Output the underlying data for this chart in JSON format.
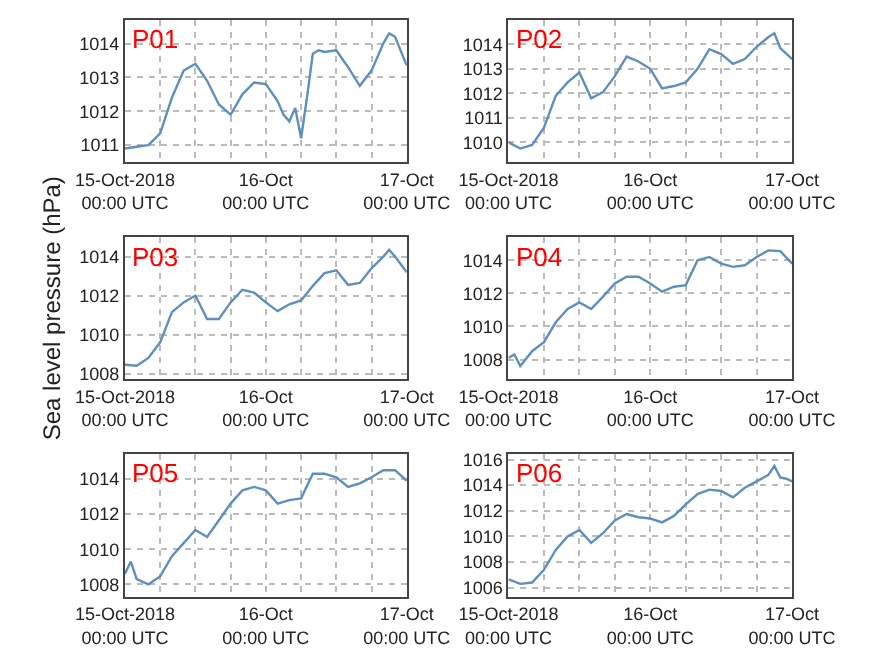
{
  "chart_data": [
    {
      "type": "line",
      "title": "P01",
      "color": "#5f8fbf",
      "grid": true,
      "xlim": [
        "2018-10-15T00:00",
        "2018-10-17T00:00"
      ],
      "xticks": [
        {
          "value": "2018-10-15T00:00",
          "label": "15-Oct-2018\n00:00 UTC"
        },
        {
          "value": "2018-10-15T06:00",
          "label": null
        },
        {
          "value": "2018-10-15T12:00",
          "label": null
        },
        {
          "value": "2018-10-15T18:00",
          "label": null
        },
        {
          "value": "2018-10-16T00:00",
          "label": "16-Oct\n00:00 UTC"
        },
        {
          "value": "2018-10-16T06:00",
          "label": null
        },
        {
          "value": "2018-10-16T12:00",
          "label": null
        },
        {
          "value": "2018-10-16T18:00",
          "label": null
        },
        {
          "value": "2018-10-17T00:00",
          "label": "17-Oct\n00:00 UTC"
        }
      ],
      "ylim": [
        1010.5,
        1014.7
      ],
      "yticks": [
        1011,
        1012,
        1013,
        1014
      ],
      "x": [
        "2018-10-15T00:00",
        "2018-10-15T02:00",
        "2018-10-15T04:00",
        "2018-10-15T06:00",
        "2018-10-15T08:00",
        "2018-10-15T10:00",
        "2018-10-15T12:00",
        "2018-10-15T14:00",
        "2018-10-15T16:00",
        "2018-10-15T18:00",
        "2018-10-15T20:00",
        "2018-10-15T22:00",
        "2018-10-16T00:00",
        "2018-10-16T02:00",
        "2018-10-16T03:00",
        "2018-10-16T04:00",
        "2018-10-16T05:00",
        "2018-10-16T06:00",
        "2018-10-16T07:00",
        "2018-10-16T08:00",
        "2018-10-16T09:00",
        "2018-10-16T10:00",
        "2018-10-16T12:00",
        "2018-10-16T14:00",
        "2018-10-16T16:00",
        "2018-10-16T18:00",
        "2018-10-16T20:00",
        "2018-10-16T21:00",
        "2018-10-16T22:00",
        "2018-10-17T00:00"
      ],
      "values": [
        1010.9,
        1010.95,
        1011.0,
        1011.35,
        1012.4,
        1013.2,
        1013.4,
        1012.9,
        1012.2,
        1011.9,
        1012.5,
        1012.85,
        1012.8,
        1012.3,
        1011.9,
        1011.7,
        1012.1,
        1011.2,
        1012.4,
        1013.7,
        1013.8,
        1013.75,
        1013.8,
        1013.3,
        1012.75,
        1013.2,
        1014.0,
        1014.3,
        1014.2,
        1013.35
      ]
    },
    {
      "type": "line",
      "title": "P02",
      "color": "#5f8fbf",
      "grid": true,
      "xlim": [
        "2018-10-15T00:00",
        "2018-10-17T00:00"
      ],
      "xticks": [
        {
          "value": "2018-10-15T00:00",
          "label": "15-Oct-2018\n00:00 UTC"
        },
        {
          "value": "2018-10-15T06:00",
          "label": null
        },
        {
          "value": "2018-10-15T12:00",
          "label": null
        },
        {
          "value": "2018-10-15T18:00",
          "label": null
        },
        {
          "value": "2018-10-16T00:00",
          "label": "16-Oct\n00:00 UTC"
        },
        {
          "value": "2018-10-16T06:00",
          "label": null
        },
        {
          "value": "2018-10-16T12:00",
          "label": null
        },
        {
          "value": "2018-10-16T18:00",
          "label": null
        },
        {
          "value": "2018-10-17T00:00",
          "label": "17-Oct\n00:00 UTC"
        }
      ],
      "ylim": [
        1009.2,
        1015.0
      ],
      "yticks": [
        1010,
        1011,
        1012,
        1013,
        1014
      ],
      "x": [
        "2018-10-15T00:00",
        "2018-10-15T02:00",
        "2018-10-15T04:00",
        "2018-10-15T06:00",
        "2018-10-15T08:00",
        "2018-10-15T10:00",
        "2018-10-15T12:00",
        "2018-10-15T14:00",
        "2018-10-15T16:00",
        "2018-10-15T18:00",
        "2018-10-15T20:00",
        "2018-10-15T22:00",
        "2018-10-16T00:00",
        "2018-10-16T02:00",
        "2018-10-16T04:00",
        "2018-10-16T06:00",
        "2018-10-16T08:00",
        "2018-10-16T10:00",
        "2018-10-16T12:00",
        "2018-10-16T14:00",
        "2018-10-16T16:00",
        "2018-10-16T18:00",
        "2018-10-16T20:00",
        "2018-10-16T21:00",
        "2018-10-16T22:00",
        "2018-10-17T00:00"
      ],
      "values": [
        1010.0,
        1009.75,
        1009.9,
        1010.6,
        1011.9,
        1012.45,
        1012.85,
        1011.8,
        1012.05,
        1012.7,
        1013.5,
        1013.3,
        1013.0,
        1012.2,
        1012.3,
        1012.45,
        1013.0,
        1013.8,
        1013.6,
        1013.2,
        1013.4,
        1013.9,
        1014.3,
        1014.45,
        1013.85,
        1013.4
      ]
    },
    {
      "type": "line",
      "title": "P03",
      "ylabel": "Sea level pressure (hPa)",
      "color": "#5f8fbf",
      "grid": true,
      "xlim": [
        "2018-10-15T00:00",
        "2018-10-17T00:00"
      ],
      "xticks": [
        {
          "value": "2018-10-15T00:00",
          "label": "15-Oct-2018\n00:00 UTC"
        },
        {
          "value": "2018-10-15T06:00",
          "label": null
        },
        {
          "value": "2018-10-15T12:00",
          "label": null
        },
        {
          "value": "2018-10-15T18:00",
          "label": null
        },
        {
          "value": "2018-10-16T00:00",
          "label": "16-Oct\n00:00 UTC"
        },
        {
          "value": "2018-10-16T06:00",
          "label": null
        },
        {
          "value": "2018-10-16T12:00",
          "label": null
        },
        {
          "value": "2018-10-16T18:00",
          "label": null
        },
        {
          "value": "2018-10-17T00:00",
          "label": "17-Oct\n00:00 UTC"
        }
      ],
      "ylim": [
        1007.7,
        1015.0
      ],
      "yticks": [
        1008,
        1010,
        1012,
        1014
      ],
      "x": [
        "2018-10-15T00:00",
        "2018-10-15T02:00",
        "2018-10-15T04:00",
        "2018-10-15T06:00",
        "2018-10-15T08:00",
        "2018-10-15T10:00",
        "2018-10-15T12:00",
        "2018-10-15T14:00",
        "2018-10-15T16:00",
        "2018-10-15T18:00",
        "2018-10-15T20:00",
        "2018-10-15T22:00",
        "2018-10-16T00:00",
        "2018-10-16T02:00",
        "2018-10-16T04:00",
        "2018-10-16T06:00",
        "2018-10-16T08:00",
        "2018-10-16T10:00",
        "2018-10-16T12:00",
        "2018-10-16T14:00",
        "2018-10-16T16:00",
        "2018-10-16T18:00",
        "2018-10-16T20:00",
        "2018-10-16T21:00",
        "2018-10-16T22:00",
        "2018-10-17T00:00"
      ],
      "values": [
        1008.45,
        1008.4,
        1008.8,
        1009.6,
        1011.15,
        1011.65,
        1012.0,
        1010.8,
        1010.8,
        1011.65,
        1012.3,
        1012.15,
        1011.65,
        1011.2,
        1011.55,
        1011.75,
        1012.5,
        1013.15,
        1013.3,
        1012.55,
        1012.65,
        1013.4,
        1014.0,
        1014.35,
        1014.0,
        1013.2
      ]
    },
    {
      "type": "line",
      "title": "P04",
      "color": "#5f8fbf",
      "grid": true,
      "xlim": [
        "2018-10-15T00:00",
        "2018-10-17T00:00"
      ],
      "xticks": [
        {
          "value": "2018-10-15T00:00",
          "label": "15-Oct-2018\n00:00 UTC"
        },
        {
          "value": "2018-10-15T06:00",
          "label": null
        },
        {
          "value": "2018-10-15T12:00",
          "label": null
        },
        {
          "value": "2018-10-15T18:00",
          "label": null
        },
        {
          "value": "2018-10-16T00:00",
          "label": "16-Oct\n00:00 UTC"
        },
        {
          "value": "2018-10-16T06:00",
          "label": null
        },
        {
          "value": "2018-10-16T12:00",
          "label": null
        },
        {
          "value": "2018-10-16T18:00",
          "label": null
        },
        {
          "value": "2018-10-17T00:00",
          "label": "17-Oct\n00:00 UTC"
        }
      ],
      "ylim": [
        1006.8,
        1015.4
      ],
      "yticks": [
        1008,
        1010,
        1012,
        1014
      ],
      "x": [
        "2018-10-15T00:00",
        "2018-10-15T01:00",
        "2018-10-15T02:00",
        "2018-10-15T04:00",
        "2018-10-15T06:00",
        "2018-10-15T08:00",
        "2018-10-15T10:00",
        "2018-10-15T12:00",
        "2018-10-15T14:00",
        "2018-10-15T16:00",
        "2018-10-15T18:00",
        "2018-10-15T20:00",
        "2018-10-15T22:00",
        "2018-10-16T00:00",
        "2018-10-16T02:00",
        "2018-10-16T04:00",
        "2018-10-16T06:00",
        "2018-10-16T08:00",
        "2018-10-16T10:00",
        "2018-10-16T12:00",
        "2018-10-16T14:00",
        "2018-10-16T16:00",
        "2018-10-16T18:00",
        "2018-10-16T20:00",
        "2018-10-16T22:00",
        "2018-10-17T00:00"
      ],
      "values": [
        1008.1,
        1008.3,
        1007.6,
        1008.5,
        1009.05,
        1010.25,
        1011.05,
        1011.45,
        1011.05,
        1011.8,
        1012.6,
        1013.0,
        1013.0,
        1012.6,
        1012.1,
        1012.4,
        1012.5,
        1014.0,
        1014.2,
        1013.8,
        1013.6,
        1013.7,
        1014.2,
        1014.6,
        1014.55,
        1013.8
      ]
    },
    {
      "type": "line",
      "title": "P05",
      "color": "#5f8fbf",
      "grid": true,
      "xlim": [
        "2018-10-15T00:00",
        "2018-10-17T00:00"
      ],
      "xticks": [
        {
          "value": "2018-10-15T00:00",
          "label": "15-Oct-2018\n00:00 UTC"
        },
        {
          "value": "2018-10-15T06:00",
          "label": null
        },
        {
          "value": "2018-10-15T12:00",
          "label": null
        },
        {
          "value": "2018-10-15T18:00",
          "label": null
        },
        {
          "value": "2018-10-16T00:00",
          "label": "16-Oct\n00:00 UTC"
        },
        {
          "value": "2018-10-16T06:00",
          "label": null
        },
        {
          "value": "2018-10-16T12:00",
          "label": null
        },
        {
          "value": "2018-10-16T18:00",
          "label": null
        },
        {
          "value": "2018-10-17T00:00",
          "label": "17-Oct\n00:00 UTC"
        }
      ],
      "ylim": [
        1007.3,
        1015.4
      ],
      "yticks": [
        1008,
        1010,
        1012,
        1014
      ],
      "x": [
        "2018-10-15T00:00",
        "2018-10-15T01:00",
        "2018-10-15T02:00",
        "2018-10-15T04:00",
        "2018-10-15T06:00",
        "2018-10-15T08:00",
        "2018-10-15T10:00",
        "2018-10-15T12:00",
        "2018-10-15T14:00",
        "2018-10-15T16:00",
        "2018-10-15T18:00",
        "2018-10-15T20:00",
        "2018-10-15T22:00",
        "2018-10-16T00:00",
        "2018-10-16T02:00",
        "2018-10-16T04:00",
        "2018-10-16T06:00",
        "2018-10-16T08:00",
        "2018-10-16T10:00",
        "2018-10-16T12:00",
        "2018-10-16T14:00",
        "2018-10-16T16:00",
        "2018-10-16T18:00",
        "2018-10-16T20:00",
        "2018-10-16T22:00",
        "2018-10-17T00:00"
      ],
      "values": [
        1008.6,
        1009.3,
        1008.3,
        1008.0,
        1008.45,
        1009.6,
        1010.35,
        1011.1,
        1010.7,
        1011.65,
        1012.6,
        1013.35,
        1013.55,
        1013.35,
        1012.6,
        1012.8,
        1012.9,
        1014.3,
        1014.3,
        1014.1,
        1013.55,
        1013.75,
        1014.1,
        1014.5,
        1014.5,
        1013.9
      ]
    },
    {
      "type": "line",
      "title": "P06",
      "color": "#5f8fbf",
      "grid": true,
      "xlim": [
        "2018-10-15T00:00",
        "2018-10-17T00:00"
      ],
      "xticks": [
        {
          "value": "2018-10-15T00:00",
          "label": "15-Oct-2018\n00:00 UTC"
        },
        {
          "value": "2018-10-15T06:00",
          "label": null
        },
        {
          "value": "2018-10-15T12:00",
          "label": null
        },
        {
          "value": "2018-10-15T18:00",
          "label": null
        },
        {
          "value": "2018-10-16T00:00",
          "label": "16-Oct\n00:00 UTC"
        },
        {
          "value": "2018-10-16T06:00",
          "label": null
        },
        {
          "value": "2018-10-16T12:00",
          "label": null
        },
        {
          "value": "2018-10-16T18:00",
          "label": null
        },
        {
          "value": "2018-10-17T00:00",
          "label": "17-Oct\n00:00 UTC"
        }
      ],
      "ylim": [
        1005.3,
        1016.4
      ],
      "yticks": [
        1006,
        1008,
        1010,
        1012,
        1014,
        1016
      ],
      "x": [
        "2018-10-15T00:00",
        "2018-10-15T02:00",
        "2018-10-15T04:00",
        "2018-10-15T06:00",
        "2018-10-15T08:00",
        "2018-10-15T10:00",
        "2018-10-15T12:00",
        "2018-10-15T14:00",
        "2018-10-15T16:00",
        "2018-10-15T18:00",
        "2018-10-15T20:00",
        "2018-10-15T22:00",
        "2018-10-16T00:00",
        "2018-10-16T02:00",
        "2018-10-16T04:00",
        "2018-10-16T06:00",
        "2018-10-16T08:00",
        "2018-10-16T10:00",
        "2018-10-16T12:00",
        "2018-10-16T14:00",
        "2018-10-16T16:00",
        "2018-10-16T18:00",
        "2018-10-16T20:00",
        "2018-10-16T21:00",
        "2018-10-16T22:00",
        "2018-10-16T23:00",
        "2018-10-17T00:00"
      ],
      "values": [
        1006.65,
        1006.3,
        1006.4,
        1007.4,
        1008.95,
        1010.0,
        1010.5,
        1009.5,
        1010.25,
        1011.25,
        1011.75,
        1011.5,
        1011.4,
        1011.1,
        1011.6,
        1012.5,
        1013.3,
        1013.65,
        1013.55,
        1013.05,
        1013.8,
        1014.3,
        1014.8,
        1015.5,
        1014.6,
        1014.5,
        1014.3
      ]
    }
  ]
}
